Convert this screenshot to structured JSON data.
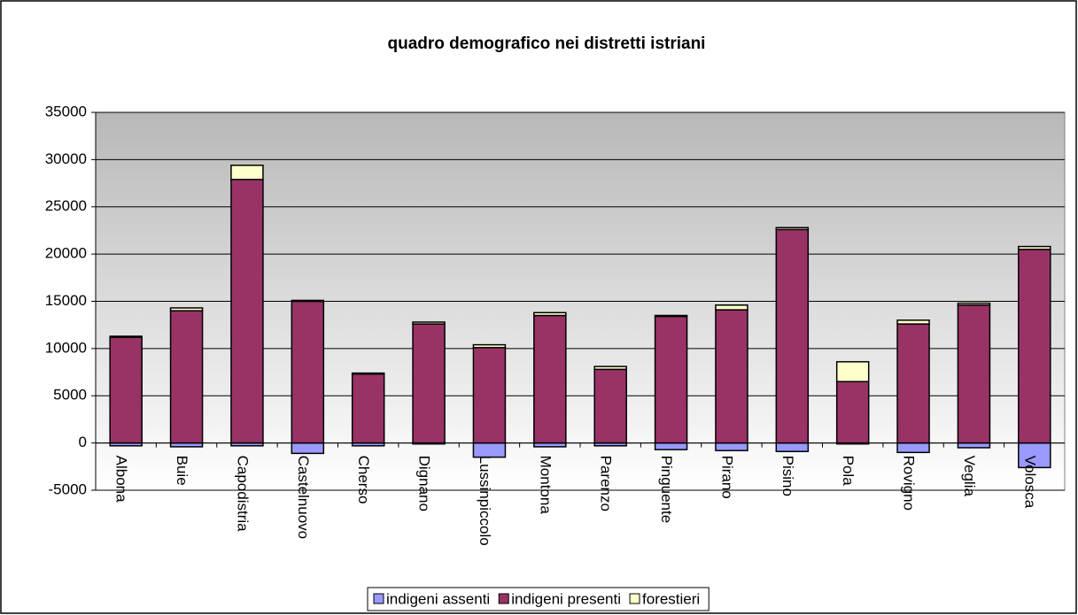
{
  "chart_data": {
    "type": "stacked_bar",
    "title": "quadro demografico nei distretti istriani",
    "categories": [
      "Albona",
      "Buie",
      "Capodistria",
      "Castelnuovo",
      "Cherso",
      "Dignano",
      "Lussinpiccolo",
      "Montona",
      "Parenzo",
      "Pinguente",
      "Pirano",
      "Pisino",
      "Pola",
      "Rovigno",
      "Veglia",
      "Volosca"
    ],
    "series": [
      {
        "name": "indigeni assenti",
        "color": "#9999ff",
        "values": [
          -300,
          -400,
          -300,
          -1100,
          -300,
          -100,
          -1500,
          -400,
          -300,
          -700,
          -800,
          -900,
          -100,
          -1000,
          -500,
          -2600
        ]
      },
      {
        "name": "indigeni presenti",
        "color": "#993366",
        "values": [
          11200,
          14000,
          27900,
          15000,
          7300,
          12600,
          10100,
          13500,
          7800,
          13400,
          14100,
          22600,
          6500,
          12600,
          14600,
          20500
        ]
      },
      {
        "name": "forestieri",
        "color": "#ffffcc",
        "values": [
          100,
          300,
          1500,
          100,
          100,
          200,
          300,
          300,
          300,
          100,
          500,
          200,
          2100,
          400,
          200,
          300
        ]
      }
    ],
    "ylim": [
      -5000,
      35000
    ],
    "yticks": [
      -5000,
      0,
      5000,
      10000,
      15000,
      20000,
      25000,
      30000,
      35000
    ],
    "grid": true,
    "legend": "bottom"
  }
}
